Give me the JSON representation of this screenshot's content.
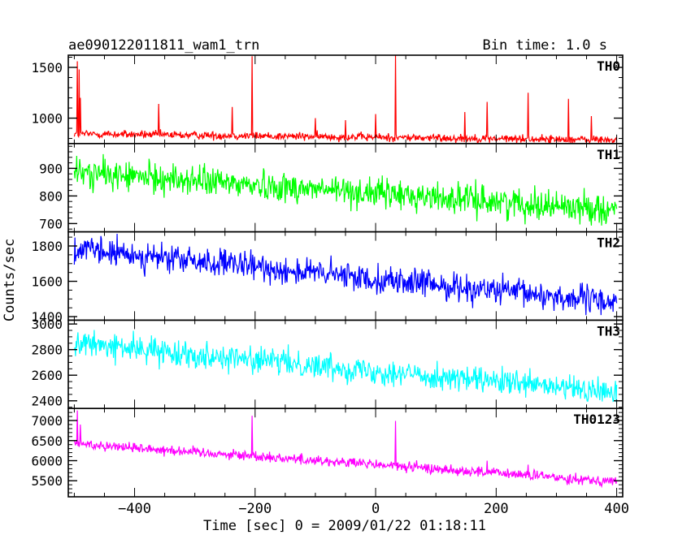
{
  "header": {
    "title": "ae090122011811_wam1_trn",
    "bin_time": "Bin time: 1.0 s"
  },
  "chart_data": {
    "type": "line",
    "title": "ae090122011811_wam1_trn",
    "subtitle": "Bin time: 1.0 s",
    "xlabel": "Time [sec] 0 = 2009/01/22 01:18:11",
    "ylabel": "Counts/sec",
    "xlim": [
      -510,
      410
    ],
    "x_ticks": [
      -400,
      -200,
      0,
      200,
      400
    ],
    "x_tick_labels": [
      "−400",
      "−200",
      "0",
      "200",
      "400"
    ],
    "x_start": -500,
    "x_end": 400,
    "x_step": 1,
    "panels": [
      {
        "name": "TH0",
        "color": "#ff0000",
        "ylim": [
          750,
          1620
        ],
        "y_ticks": [
          1000,
          1500
        ],
        "y_minor_step": 100,
        "trend_start": 845,
        "trend_end": 785,
        "noise": 28,
        "spikes": [
          {
            "x": -495,
            "y": 1560
          },
          {
            "x": -492,
            "y": 1480
          },
          {
            "x": -490,
            "y": 1200
          },
          {
            "x": -360,
            "y": 1140
          },
          {
            "x": -238,
            "y": 1110
          },
          {
            "x": -205,
            "y": 1610
          },
          {
            "x": -100,
            "y": 1000
          },
          {
            "x": -50,
            "y": 980
          },
          {
            "x": 0,
            "y": 1040
          },
          {
            "x": 33,
            "y": 1620
          },
          {
            "x": 148,
            "y": 1060
          },
          {
            "x": 185,
            "y": 1160
          },
          {
            "x": 253,
            "y": 1250
          },
          {
            "x": 320,
            "y": 1190
          },
          {
            "x": 358,
            "y": 1020
          }
        ]
      },
      {
        "name": "TH1",
        "color": "#00ff00",
        "ylim": [
          670,
          990
        ],
        "y_ticks": [
          700,
          800,
          900
        ],
        "y_minor_step": 20,
        "trend_start": 885,
        "trend_end": 750,
        "noise": 38,
        "spikes": []
      },
      {
        "name": "TH2",
        "color": "#0000ff",
        "ylim": [
          1380,
          1880
        ],
        "y_ticks": [
          1400,
          1600,
          1800
        ],
        "y_minor_step": 50,
        "trend_start": 1780,
        "trend_end": 1480,
        "noise": 55,
        "spikes": []
      },
      {
        "name": "TH3",
        "color": "#00ffff",
        "ylim": [
          2340,
          3030
        ],
        "y_ticks": [
          2400,
          2600,
          2800,
          3000
        ],
        "y_minor_step": 50,
        "trend_start": 2850,
        "trend_end": 2460,
        "noise": 70,
        "spikes": []
      },
      {
        "name": "TH0123",
        "color": "#ff00ff",
        "ylim": [
          5100,
          7300
        ],
        "y_ticks": [
          5500,
          6000,
          6500,
          7000
        ],
        "y_minor_step": 100,
        "trend_start": 6430,
        "trend_end": 5480,
        "noise": 90,
        "spikes": [
          {
            "x": -495,
            "y": 7250
          },
          {
            "x": -490,
            "y": 6900
          },
          {
            "x": -205,
            "y": 7120
          },
          {
            "x": 33,
            "y": 6990
          },
          {
            "x": 185,
            "y": 6000
          },
          {
            "x": 253,
            "y": 5900
          }
        ]
      }
    ]
  }
}
